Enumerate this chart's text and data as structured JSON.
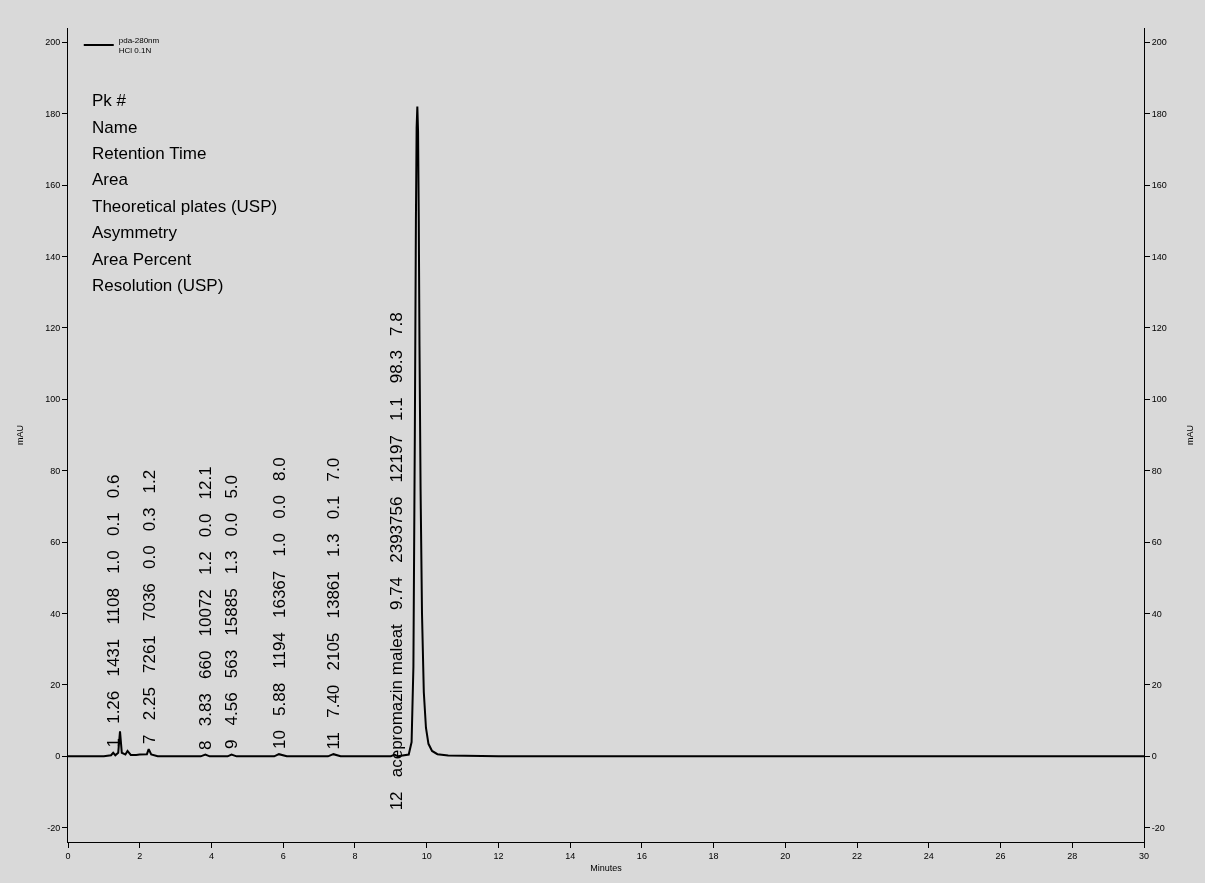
{
  "chart_data": {
    "type": "line",
    "xlabel": "Minutes",
    "ylabel": "mAU",
    "y2label": "mAU",
    "xlim": [
      0,
      30
    ],
    "xticks": [
      0,
      2,
      4,
      6,
      8,
      10,
      12,
      14,
      16,
      18,
      20,
      22,
      24,
      26,
      28,
      30
    ],
    "ylim": [
      -24,
      204
    ],
    "yticks": [
      -20,
      0,
      20,
      40,
      60,
      80,
      100,
      120,
      140,
      160,
      180,
      200
    ],
    "y2lim": [
      -24,
      204
    ],
    "y2ticks": [
      -20,
      0,
      20,
      40,
      60,
      80,
      100,
      120,
      140,
      160,
      180,
      200
    ],
    "grid": false,
    "legend": "top left",
    "marker": "none",
    "line_style": "solid",
    "series": [
      {
        "name": "pda-280nm\nHCl 0.1N",
        "color": "#000000",
        "x": [
          0,
          1.0,
          1.2,
          1.26,
          1.32,
          1.4,
          1.45,
          1.5,
          1.6,
          1.66,
          1.75,
          1.9,
          2.0,
          2.2,
          2.25,
          2.32,
          2.5,
          3.7,
          3.83,
          3.95,
          4.45,
          4.56,
          4.7,
          5.75,
          5.88,
          6.1,
          7.25,
          7.4,
          7.6,
          9.0,
          9.1,
          9.2,
          9.5,
          9.58,
          9.63,
          9.67,
          9.7,
          9.72,
          9.74,
          9.76,
          9.78,
          9.8,
          9.83,
          9.87,
          9.92,
          9.98,
          10.05,
          10.15,
          10.3,
          10.6,
          12,
          30
        ],
        "values": [
          0,
          0,
          0.3,
          1,
          0.3,
          1,
          7,
          1,
          0.5,
          1.5,
          0.4,
          0.4,
          0.5,
          0.6,
          2,
          0.5,
          0,
          0,
          0.5,
          0,
          0,
          0.5,
          0,
          0,
          0.6,
          0,
          0,
          0.6,
          0,
          0,
          0.5,
          0,
          0.5,
          4,
          25,
          90,
          150,
          176,
          182,
          175,
          150,
          115,
          75,
          40,
          18,
          8,
          3.5,
          1.5,
          0.6,
          0.2,
          0,
          0
        ]
      }
    ],
    "annotations": [
      "Pk #",
      "Name",
      "Retention Time",
      "Area",
      "Theoretical plates (USP)",
      "Asymmetry",
      "Area Percent",
      "Resolution (USP)",
      {
        "text": "1   1.26   1431   1108   1.0   0.1   0.6",
        "x": 1.26,
        "y": 1
      },
      {
        "text": "7   2.25   7261   7036   0.0   0.3   1.2",
        "x": 2.25,
        "y": 2
      },
      {
        "text": "8   3.83   660   10072   1.2   0.0   12.1",
        "x": 3.83,
        "y": 0.5
      },
      {
        "text": "9   4.56   563   15885   1.3   0.0   5.0",
        "x": 4.56,
        "y": 0.5
      },
      {
        "text": "10   5.88   1194   16367   1.0   0.0   8.0",
        "x": 5.88,
        "y": 0.6
      },
      {
        "text": "11   7.40   2105   13861   1.3   0.1   7.0",
        "x": 7.4,
        "y": 0.6
      },
      "12   acepromazin maleat   9.74   2393756   12197   1.1   98.3   7.8"
    ]
  }
}
